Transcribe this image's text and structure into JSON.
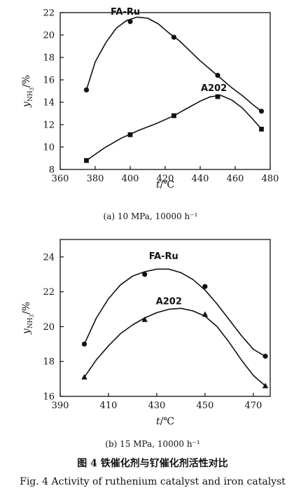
{
  "chart_data": [
    {
      "type": "line",
      "caption": "(a) 10 MPa, 10000 h⁻¹",
      "xlabel_var": "t",
      "xlabel_unit": "/℃",
      "ylabel_var": "y",
      "ylabel_sub": "NH",
      "ylabel_subsub": "3",
      "ylabel_unit": "/%",
      "xlim": [
        360,
        480
      ],
      "ylim": [
        8,
        22
      ],
      "xticks": [
        360,
        380,
        400,
        420,
        440,
        460,
        480
      ],
      "yticks": [
        8,
        10,
        12,
        14,
        16,
        18,
        20,
        22
      ],
      "series": [
        {
          "name": "FA-Ru",
          "marker": "circle",
          "x": [
            375,
            400,
            425,
            450,
            475
          ],
          "y": [
            15.1,
            21.2,
            19.8,
            16.4,
            13.2
          ],
          "curve": [
            [
              375,
              15.1
            ],
            [
              380,
              17.6
            ],
            [
              386,
              19.3
            ],
            [
              392,
              20.6
            ],
            [
              398,
              21.3
            ],
            [
              404,
              21.6
            ],
            [
              410,
              21.5
            ],
            [
              416,
              21.0
            ],
            [
              422,
              20.2
            ],
            [
              428,
              19.5
            ],
            [
              434,
              18.6
            ],
            [
              440,
              17.7
            ],
            [
              446,
              16.9
            ],
            [
              452,
              16.1
            ],
            [
              458,
              15.3
            ],
            [
              464,
              14.6
            ],
            [
              470,
              13.8
            ],
            [
              475,
              13.2
            ]
          ]
        },
        {
          "name": "A202",
          "marker": "square",
          "x": [
            375,
            400,
            425,
            450,
            475
          ],
          "y": [
            8.8,
            11.1,
            12.8,
            14.5,
            11.6
          ],
          "curve": [
            [
              375,
              8.8
            ],
            [
              385,
              9.9
            ],
            [
              395,
              10.8
            ],
            [
              405,
              11.5
            ],
            [
              415,
              12.1
            ],
            [
              425,
              12.8
            ],
            [
              433,
              13.5
            ],
            [
              440,
              14.1
            ],
            [
              446,
              14.5
            ],
            [
              452,
              14.6
            ],
            [
              458,
              14.2
            ],
            [
              464,
              13.5
            ],
            [
              470,
              12.5
            ],
            [
              475,
              11.6
            ]
          ]
        }
      ]
    },
    {
      "type": "line",
      "caption": "(b) 15 MPa, 10000 h⁻¹",
      "xlabel_var": "t",
      "xlabel_unit": "/℃",
      "ylabel_var": "y",
      "ylabel_sub": "NH",
      "ylabel_subsub": "3",
      "ylabel_unit": "/%",
      "xlim": [
        390,
        477
      ],
      "ylim": [
        16,
        25
      ],
      "xticks": [
        390,
        410,
        430,
        450,
        470
      ],
      "yticks": [
        16,
        18,
        20,
        22,
        24
      ],
      "series": [
        {
          "name": "FA-Ru",
          "marker": "circle",
          "x": [
            400,
            425,
            450,
            475
          ],
          "y": [
            19.0,
            23.0,
            22.3,
            18.3
          ],
          "curve": [
            [
              400,
              19.0
            ],
            [
              405,
              20.5
            ],
            [
              410,
              21.6
            ],
            [
              415,
              22.4
            ],
            [
              420,
              22.9
            ],
            [
              425,
              23.15
            ],
            [
              430,
              23.3
            ],
            [
              435,
              23.3
            ],
            [
              440,
              23.1
            ],
            [
              445,
              22.7
            ],
            [
              450,
              22.1
            ],
            [
              455,
              21.3
            ],
            [
              460,
              20.4
            ],
            [
              465,
              19.5
            ],
            [
              470,
              18.7
            ],
            [
              475,
              18.3
            ]
          ]
        },
        {
          "name": "A202",
          "marker": "triangle",
          "x": [
            400,
            425,
            450,
            475
          ],
          "y": [
            17.1,
            20.4,
            20.7,
            16.6
          ],
          "curve": [
            [
              400,
              17.1
            ],
            [
              405,
              18.1
            ],
            [
              410,
              18.9
            ],
            [
              415,
              19.6
            ],
            [
              420,
              20.1
            ],
            [
              425,
              20.5
            ],
            [
              430,
              20.8
            ],
            [
              435,
              21.0
            ],
            [
              440,
              21.05
            ],
            [
              445,
              20.9
            ],
            [
              450,
              20.6
            ],
            [
              455,
              20.0
            ],
            [
              460,
              19.1
            ],
            [
              465,
              18.1
            ],
            [
              470,
              17.2
            ],
            [
              475,
              16.6
            ]
          ]
        }
      ]
    }
  ],
  "figure_caption_cn": "图 4   铁催化剂与钌催化剂活性对比",
  "figure_caption_en": "Fig. 4   Activity of ruthenium catalyst and iron catalyst"
}
